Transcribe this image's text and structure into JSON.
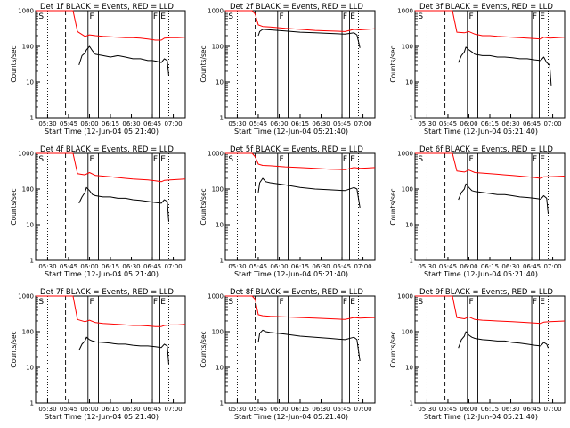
{
  "chart_data": [
    {
      "type": "line",
      "title": "Det 1f BLACK = Events, RED = LLD",
      "xlabel": "Start Time (12-Jun-04 05:21:40)",
      "ylabel": "Counts/sec",
      "yscale": "log",
      "ylim": [
        1,
        1000
      ],
      "xticks": [
        "05:30",
        "05:45",
        "06:00",
        "06:15",
        "06:30",
        "06:45",
        "07:00"
      ],
      "yticks": [
        "1",
        "10",
        "100",
        "1000"
      ],
      "markers": [
        "S",
        "F",
        "F",
        "E"
      ],
      "series": [
        {
          "color": "#ff0000",
          "x": [
            0,
            4,
            7,
            10,
            14,
            18,
            22,
            25,
            28,
            33,
            36,
            40,
            45,
            50,
            55,
            60,
            65,
            70,
            75,
            80,
            84,
            86,
            90,
            95,
            100
          ],
          "y": [
            1000,
            1000,
            1000,
            1000,
            1000,
            1000,
            1000,
            1000,
            260,
            190,
            210,
            200,
            190,
            185,
            180,
            175,
            175,
            170,
            160,
            150,
            150,
            170,
            175,
            175,
            180
          ]
        },
        {
          "color": "#000000",
          "x": [
            29,
            31,
            33,
            34,
            36,
            38,
            40,
            45,
            50,
            55,
            60,
            65,
            70,
            75,
            78,
            81,
            84,
            86,
            88,
            89
          ],
          "y": [
            30,
            55,
            65,
            80,
            100,
            75,
            60,
            55,
            50,
            55,
            50,
            45,
            45,
            40,
            40,
            38,
            35,
            45,
            40,
            15
          ]
        }
      ]
    },
    {
      "type": "line",
      "title": "Det 2f BLACK = Events, RED = LLD",
      "xlabel": "Start Time (12-Jun-04 05:21:40)",
      "ylabel": "Counts/sec",
      "yscale": "log",
      "ylim": [
        1,
        1000
      ],
      "xticks": [
        "05:30",
        "05:45",
        "06:00",
        "06:15",
        "06:30",
        "06:45",
        "07:00"
      ],
      "yticks": [
        "1",
        "10",
        "100",
        "1000"
      ],
      "markers": [
        "S",
        "F",
        "F",
        "E"
      ],
      "series": [
        {
          "color": "#ff0000",
          "x": [
            0,
            5,
            10,
            15,
            18,
            20,
            22,
            25,
            30,
            40,
            50,
            60,
            70,
            80,
            86,
            90,
            95,
            100
          ],
          "y": [
            1000,
            1000,
            1000,
            1000,
            1000,
            800,
            400,
            360,
            350,
            320,
            300,
            280,
            270,
            260,
            300,
            290,
            300,
            310
          ]
        },
        {
          "color": "#000000",
          "x": [
            22,
            23,
            25,
            30,
            40,
            50,
            60,
            70,
            80,
            86,
            88,
            90
          ],
          "y": [
            200,
            260,
            300,
            290,
            270,
            250,
            240,
            230,
            220,
            240,
            210,
            90
          ]
        }
      ]
    },
    {
      "type": "line",
      "title": "Det 3f BLACK = Events, RED = LLD",
      "xlabel": "Start Time (12-Jun-04 05:21:40)",
      "ylabel": "Counts/sec",
      "yscale": "log",
      "ylim": [
        1,
        1000
      ],
      "xticks": [
        "05:30",
        "05:45",
        "06:00",
        "06:15",
        "06:30",
        "06:45",
        "07:00"
      ],
      "yticks": [
        "1",
        "10",
        "100",
        "1000"
      ],
      "markers": [
        "S",
        "F",
        "F",
        "E"
      ],
      "series": [
        {
          "color": "#ff0000",
          "x": [
            0,
            5,
            10,
            15,
            20,
            25,
            28,
            33,
            36,
            40,
            45,
            50,
            55,
            60,
            65,
            70,
            75,
            80,
            84,
            86,
            90,
            95,
            100
          ],
          "y": [
            1000,
            1000,
            1000,
            1000,
            1000,
            1000,
            250,
            240,
            260,
            220,
            200,
            200,
            190,
            185,
            180,
            175,
            170,
            165,
            160,
            180,
            170,
            175,
            180
          ]
        },
        {
          "color": "#000000",
          "x": [
            29,
            31,
            33,
            34,
            36,
            38,
            40,
            45,
            50,
            55,
            60,
            65,
            70,
            75,
            80,
            84,
            86,
            88,
            90,
            91
          ],
          "y": [
            35,
            55,
            70,
            95,
            80,
            70,
            60,
            55,
            55,
            50,
            50,
            48,
            45,
            45,
            42,
            40,
            50,
            35,
            30,
            8
          ]
        }
      ]
    },
    {
      "type": "line",
      "title": "Det 4f BLACK = Events, RED = LLD",
      "xlabel": "Start Time (12-Jun-04 05:21:40)",
      "ylabel": "Counts/sec",
      "yscale": "log",
      "ylim": [
        1,
        1000
      ],
      "xticks": [
        "05:30",
        "05:45",
        "06:00",
        "06:15",
        "06:30",
        "06:45",
        "07:00"
      ],
      "yticks": [
        "1",
        "10",
        "100",
        "1000"
      ],
      "markers": [
        "S",
        "F",
        "F",
        "E"
      ],
      "series": [
        {
          "color": "#ff0000",
          "x": [
            0,
            5,
            10,
            15,
            20,
            25,
            28,
            33,
            36,
            40,
            45,
            50,
            55,
            60,
            65,
            70,
            75,
            80,
            84,
            86,
            90,
            95,
            100
          ],
          "y": [
            1000,
            1000,
            1000,
            1000,
            1000,
            1000,
            270,
            250,
            290,
            240,
            230,
            220,
            210,
            200,
            190,
            185,
            180,
            170,
            160,
            175,
            180,
            185,
            190
          ]
        },
        {
          "color": "#000000",
          "x": [
            29,
            31,
            33,
            34,
            36,
            38,
            40,
            45,
            50,
            55,
            60,
            65,
            70,
            75,
            80,
            84,
            86,
            88,
            89
          ],
          "y": [
            40,
            60,
            80,
            110,
            90,
            70,
            65,
            60,
            60,
            55,
            55,
            50,
            48,
            45,
            42,
            40,
            50,
            45,
            12
          ]
        }
      ]
    },
    {
      "type": "line",
      "title": "Det 5f BLACK = Events, RED = LLD",
      "xlabel": "Start Time (12-Jun-04 05:21:40)",
      "ylabel": "Counts/sec",
      "yscale": "log",
      "ylim": [
        1,
        1000
      ],
      "xticks": [
        "05:30",
        "05:45",
        "06:00",
        "06:15",
        "06:30",
        "06:45",
        "07:00"
      ],
      "yticks": [
        "1",
        "10",
        "100",
        "1000"
      ],
      "markers": [
        "S",
        "F",
        "F",
        "E"
      ],
      "series": [
        {
          "color": "#ff0000",
          "x": [
            0,
            5,
            10,
            15,
            18,
            20,
            22,
            25,
            30,
            40,
            50,
            60,
            70,
            80,
            86,
            90,
            95,
            100
          ],
          "y": [
            1000,
            1000,
            1000,
            1000,
            1000,
            800,
            500,
            460,
            450,
            420,
            400,
            380,
            360,
            350,
            400,
            380,
            390,
            400
          ]
        },
        {
          "color": "#000000",
          "x": [
            22,
            23,
            25,
            27,
            30,
            40,
            50,
            60,
            70,
            80,
            86,
            88,
            90
          ],
          "y": [
            80,
            150,
            200,
            160,
            150,
            130,
            110,
            100,
            95,
            90,
            110,
            100,
            30
          ]
        }
      ]
    },
    {
      "type": "line",
      "title": "Det 6f BLACK = Events, RED = LLD",
      "xlabel": "Start Time (12-Jun-04 05:21:40)",
      "ylabel": "Counts/sec",
      "yscale": "log",
      "ylim": [
        1,
        1000
      ],
      "xticks": [
        "05:30",
        "05:45",
        "06:00",
        "06:15",
        "06:30",
        "06:45",
        "07:00"
      ],
      "yticks": [
        "1",
        "10",
        "100",
        "1000"
      ],
      "markers": [
        "S",
        "F",
        "F",
        "E"
      ],
      "series": [
        {
          "color": "#ff0000",
          "x": [
            0,
            5,
            10,
            15,
            20,
            25,
            28,
            33,
            36,
            40,
            45,
            50,
            55,
            60,
            65,
            70,
            75,
            80,
            84,
            86,
            90,
            95,
            100
          ],
          "y": [
            1000,
            1000,
            1000,
            1000,
            1000,
            1000,
            320,
            300,
            340,
            290,
            280,
            270,
            260,
            250,
            240,
            230,
            220,
            210,
            200,
            220,
            220,
            225,
            230
          ]
        },
        {
          "color": "#000000",
          "x": [
            29,
            31,
            33,
            34,
            36,
            38,
            40,
            45,
            50,
            55,
            60,
            65,
            70,
            75,
            80,
            84,
            86,
            88,
            89
          ],
          "y": [
            50,
            80,
            100,
            140,
            110,
            90,
            85,
            80,
            75,
            70,
            70,
            65,
            60,
            58,
            55,
            52,
            65,
            55,
            20
          ]
        }
      ]
    },
    {
      "type": "line",
      "title": "Det 7f BLACK = Events, RED = LLD",
      "xlabel": "Start Time (12-Jun-04 05:21:40)",
      "ylabel": "Counts/sec",
      "yscale": "log",
      "ylim": [
        1,
        1000
      ],
      "xticks": [
        "05:30",
        "05:45",
        "06:00",
        "06:15",
        "06:30",
        "06:45",
        "07:00"
      ],
      "yticks": [
        "1",
        "10",
        "100",
        "1000"
      ],
      "markers": [
        "S",
        "F",
        "F",
        "E"
      ],
      "series": [
        {
          "color": "#ff0000",
          "x": [
            0,
            5,
            10,
            15,
            20,
            25,
            28,
            33,
            36,
            40,
            45,
            50,
            55,
            60,
            65,
            70,
            75,
            80,
            84,
            86,
            90,
            95,
            100
          ],
          "y": [
            1000,
            1000,
            1000,
            1000,
            1000,
            1000,
            220,
            190,
            210,
            180,
            170,
            165,
            160,
            155,
            150,
            150,
            145,
            140,
            140,
            150,
            155,
            155,
            160
          ]
        },
        {
          "color": "#000000",
          "x": [
            29,
            31,
            33,
            34,
            36,
            38,
            40,
            45,
            50,
            55,
            60,
            65,
            70,
            75,
            80,
            84,
            86,
            88,
            89
          ],
          "y": [
            30,
            45,
            55,
            70,
            60,
            55,
            52,
            50,
            48,
            45,
            45,
            42,
            40,
            40,
            38,
            36,
            45,
            40,
            12
          ]
        }
      ]
    },
    {
      "type": "line",
      "title": "Det 8f BLACK = Events, RED = LLD",
      "xlabel": "Start Time (12-Jun-04 05:21:40)",
      "ylabel": "Counts/sec",
      "yscale": "log",
      "ylim": [
        1,
        1000
      ],
      "xticks": [
        "05:30",
        "05:45",
        "06:00",
        "06:15",
        "06:30",
        "06:45",
        "07:00"
      ],
      "yticks": [
        "1",
        "10",
        "100",
        "1000"
      ],
      "markers": [
        "S",
        "F",
        "F",
        "E"
      ],
      "series": [
        {
          "color": "#ff0000",
          "x": [
            0,
            5,
            10,
            15,
            18,
            20,
            22,
            25,
            30,
            40,
            50,
            60,
            70,
            80,
            86,
            90,
            95,
            100
          ],
          "y": [
            1000,
            1000,
            1000,
            1000,
            1000,
            800,
            300,
            280,
            270,
            260,
            250,
            240,
            230,
            220,
            250,
            240,
            245,
            250
          ]
        },
        {
          "color": "#000000",
          "x": [
            22,
            23,
            25,
            27,
            30,
            40,
            50,
            60,
            70,
            80,
            86,
            88,
            90
          ],
          "y": [
            50,
            90,
            110,
            100,
            95,
            85,
            75,
            70,
            65,
            60,
            70,
            60,
            15
          ]
        }
      ]
    },
    {
      "type": "line",
      "title": "Det 9f BLACK = Events, RED = LLD",
      "xlabel": "Start Time (12-Jun-04 05:21:40)",
      "ylabel": "Counts/sec",
      "yscale": "log",
      "ylim": [
        1,
        1000
      ],
      "xticks": [
        "05:30",
        "05:45",
        "06:00",
        "06:15",
        "06:30",
        "06:45",
        "07:00"
      ],
      "yticks": [
        "1",
        "10",
        "100",
        "1000"
      ],
      "markers": [
        "S",
        "F",
        "F",
        "E"
      ],
      "series": [
        {
          "color": "#ff0000",
          "x": [
            0,
            5,
            10,
            15,
            20,
            25,
            28,
            33,
            36,
            40,
            45,
            50,
            55,
            60,
            65,
            70,
            75,
            80,
            84,
            86,
            90,
            95,
            100
          ],
          "y": [
            1000,
            1000,
            1000,
            1000,
            1000,
            1000,
            250,
            230,
            260,
            220,
            210,
            205,
            200,
            195,
            190,
            185,
            180,
            175,
            170,
            185,
            190,
            195,
            200
          ]
        },
        {
          "color": "#000000",
          "x": [
            29,
            31,
            33,
            34,
            36,
            38,
            40,
            45,
            50,
            55,
            60,
            65,
            70,
            75,
            80,
            84,
            86,
            88,
            89
          ],
          "y": [
            35,
            60,
            75,
            100,
            80,
            70,
            65,
            60,
            58,
            55,
            55,
            50,
            48,
            45,
            42,
            40,
            50,
            45,
            35
          ]
        }
      ]
    }
  ]
}
